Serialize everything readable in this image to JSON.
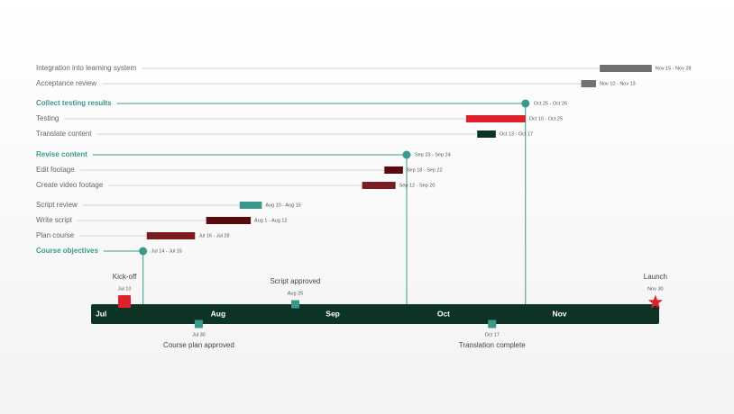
{
  "chart_data": {
    "type": "gantt",
    "months": [
      "Jul",
      "Aug",
      "Sep",
      "Oct",
      "Nov"
    ],
    "tasks": [
      {
        "name": "Integration into learning system",
        "dates": "Nov 15 - Nov 28",
        "kind": "task",
        "color": "#707070"
      },
      {
        "name": "Acceptance review",
        "dates": "Nov 10 - Nov 13",
        "kind": "task",
        "color": "#707070"
      },
      {
        "name": "Collect testing results",
        "dates": "Oct 25 - Oct 26",
        "kind": "summary",
        "color": "#3a9a8a"
      },
      {
        "name": "Testing",
        "dates": "Oct 10 - Oct 25",
        "kind": "task",
        "color": "#e0202a"
      },
      {
        "name": "Translate content",
        "dates": "Oct 13 - Oct 17",
        "kind": "task",
        "color": "#0d3324"
      },
      {
        "name": "Revise content",
        "dates": "Sep 23 - Sep 24",
        "kind": "summary",
        "color": "#3a9a8a"
      },
      {
        "name": "Edit footage",
        "dates": "Sep 18 - Sep 22",
        "kind": "task",
        "color": "#5a0a0e"
      },
      {
        "name": "Create video footage",
        "dates": "Sep 12 - Sep 20",
        "kind": "task",
        "color": "#7a1d20"
      },
      {
        "name": "Script review",
        "dates": "Aug 10 - Aug 15",
        "kind": "task",
        "color": "#3a9a8a"
      },
      {
        "name": "Write script",
        "dates": "Aug 1 - Aug 12",
        "kind": "task",
        "color": "#5a0a0e"
      },
      {
        "name": "Plan course",
        "dates": "Jul 16 - Jul 28",
        "kind": "task",
        "color": "#7a1d20"
      },
      {
        "name": "Course objectives",
        "dates": "Jul 14 - Jul 15",
        "kind": "summary",
        "color": "#3a9a8a"
      }
    ],
    "milestones": [
      {
        "label": "Kick-off",
        "date": "Jul 10",
        "shape": "square",
        "color": "#e0202a",
        "side": "above"
      },
      {
        "label": "Script approved",
        "date": "Aug 25",
        "shape": "small-square",
        "color": "#3a9a8a",
        "side": "above"
      },
      {
        "label": "Launch",
        "date": "Nov 30",
        "shape": "star",
        "color": "#e0202a",
        "side": "above"
      },
      {
        "label": "Course plan approved",
        "date": "Jul 30",
        "shape": "small-square",
        "color": "#3a9a8a",
        "side": "below"
      },
      {
        "label": "Translation complete",
        "date": "Oct 17",
        "shape": "small-square",
        "color": "#3a9a8a",
        "side": "below"
      }
    ],
    "axis_color": "#0d3324"
  }
}
